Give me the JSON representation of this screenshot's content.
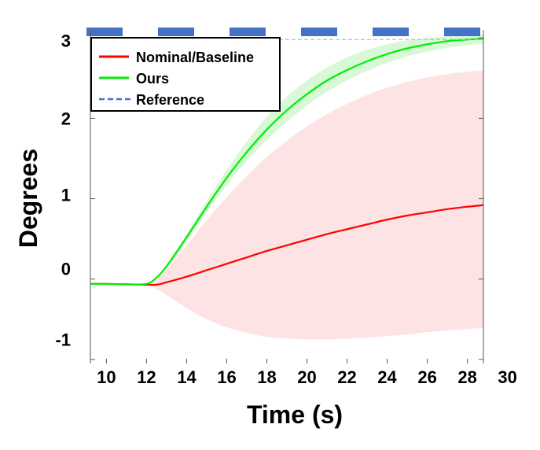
{
  "chart_data": {
    "type": "line",
    "title": "",
    "xlabel": "Time (s)",
    "ylabel": "Degrees",
    "xlim": [
      9.2,
      28.8
    ],
    "ylim": [
      -1.05,
      3.1
    ],
    "x_tick_labels": [
      "10",
      "12",
      "14",
      "16",
      "18",
      "20",
      "22",
      "24",
      "26",
      "28",
      "30"
    ],
    "x_ticks": [
      10,
      12,
      14,
      16,
      18,
      20,
      22,
      24,
      26,
      28,
      30
    ],
    "y_tick_labels": [
      "-1",
      "0",
      "1",
      "2",
      "3"
    ],
    "y_ticks": [
      -1,
      0,
      1,
      2,
      3
    ],
    "y_tick_label_positions": [
      -0.75,
      0.13,
      1.05,
      2.0,
      2.97
    ],
    "grid": false,
    "legend_position": "top-left",
    "legend": [
      {
        "label": "Nominal/Baseline",
        "color": "#ff0000",
        "style": "solid"
      },
      {
        "label": "Ours",
        "color": "#00ee00",
        "style": "solid"
      },
      {
        "label": "Reference",
        "color": "#4472c4",
        "style": "dashed"
      }
    ],
    "series": [
      {
        "name": "Nominal/Baseline",
        "color": "#ff0000",
        "band_color": "#fde0e0",
        "x": [
          9.2,
          10,
          11,
          12,
          12.5,
          13,
          14,
          15,
          16,
          17,
          18,
          19,
          20,
          21,
          22,
          23,
          24,
          25,
          26,
          27,
          28,
          28.8
        ],
        "values": [
          -0.06,
          -0.06,
          -0.065,
          -0.07,
          -0.07,
          -0.04,
          0.03,
          0.11,
          0.19,
          0.27,
          0.35,
          0.42,
          0.49,
          0.56,
          0.62,
          0.68,
          0.74,
          0.79,
          0.83,
          0.87,
          0.9,
          0.92
        ],
        "upper": [
          -0.06,
          -0.06,
          -0.065,
          -0.06,
          0.0,
          0.12,
          0.42,
          0.73,
          1.02,
          1.28,
          1.52,
          1.72,
          1.9,
          2.05,
          2.18,
          2.29,
          2.38,
          2.45,
          2.51,
          2.55,
          2.58,
          2.6
        ],
        "lower": [
          -0.06,
          -0.06,
          -0.065,
          -0.08,
          -0.12,
          -0.2,
          -0.36,
          -0.5,
          -0.6,
          -0.67,
          -0.72,
          -0.74,
          -0.75,
          -0.75,
          -0.74,
          -0.73,
          -0.71,
          -0.69,
          -0.66,
          -0.64,
          -0.62,
          -0.61
        ]
      },
      {
        "name": "Ours",
        "color": "#00ee00",
        "band_color": "#d4f7d4",
        "x": [
          9.2,
          10,
          11,
          12,
          12.5,
          13,
          14,
          15,
          16,
          17,
          18,
          19,
          20,
          21,
          22,
          23,
          24,
          25,
          26,
          27,
          28,
          28.8
        ],
        "values": [
          -0.06,
          -0.06,
          -0.065,
          -0.06,
          0.02,
          0.16,
          0.52,
          0.9,
          1.26,
          1.58,
          1.86,
          2.1,
          2.3,
          2.47,
          2.6,
          2.71,
          2.8,
          2.87,
          2.92,
          2.96,
          2.98,
          2.99
        ],
        "upper": [
          -0.06,
          -0.06,
          -0.065,
          -0.06,
          0.03,
          0.18,
          0.56,
          0.97,
          1.36,
          1.71,
          2.02,
          2.27,
          2.47,
          2.63,
          2.76,
          2.85,
          2.92,
          2.97,
          3.0,
          3.02,
          3.03,
          3.04
        ],
        "lower": [
          -0.06,
          -0.06,
          -0.065,
          -0.06,
          0.01,
          0.13,
          0.47,
          0.84,
          1.17,
          1.47,
          1.73,
          1.96,
          2.16,
          2.33,
          2.47,
          2.59,
          2.69,
          2.77,
          2.83,
          2.88,
          2.91,
          2.93
        ]
      },
      {
        "name": "Reference",
        "color": "#4472c4",
        "style": "dashed",
        "x": [
          9.2,
          28.8
        ],
        "values": [
          3.0,
          3.0
        ]
      }
    ]
  }
}
